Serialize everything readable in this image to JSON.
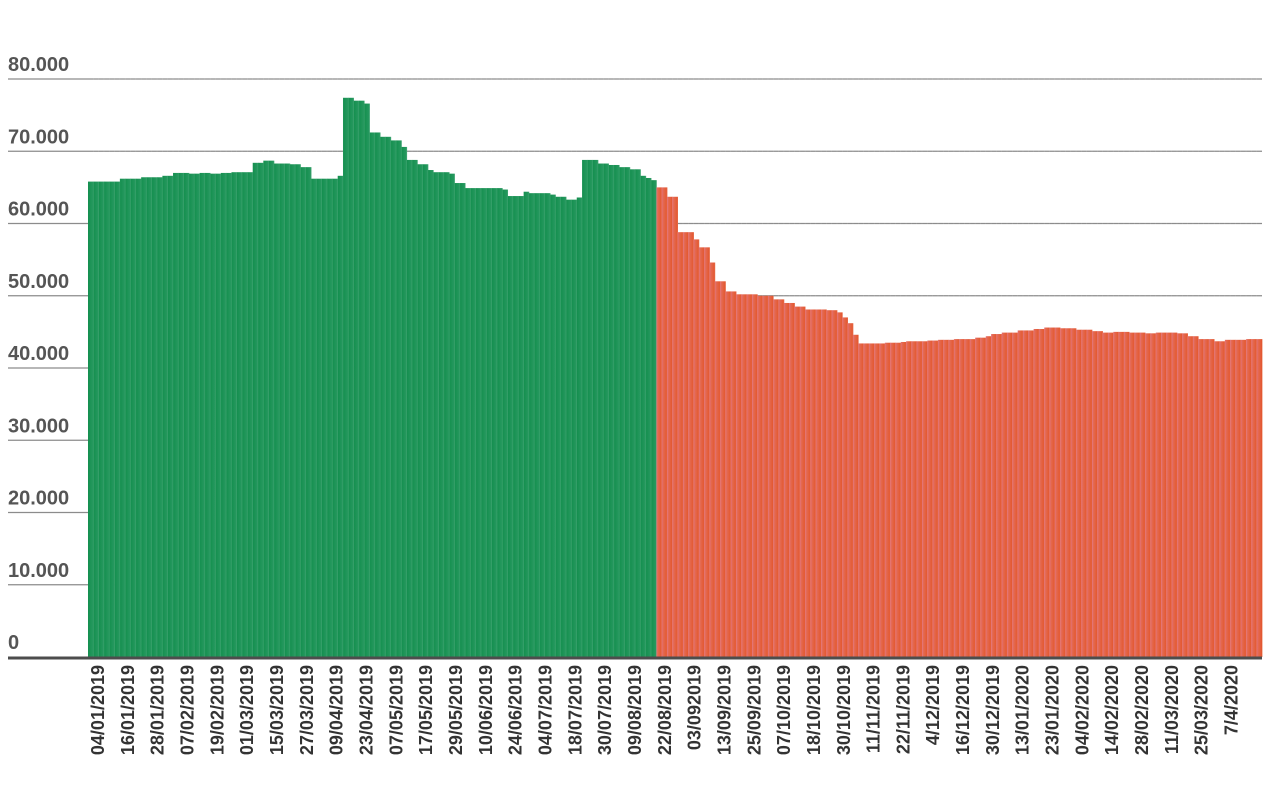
{
  "chart_data": {
    "type": "bar",
    "title": "",
    "xlabel": "",
    "ylabel": "",
    "ylim": [
      0,
      80000
    ],
    "y_ticks": [
      0,
      10000,
      20000,
      30000,
      40000,
      50000,
      60000,
      70000,
      80000
    ],
    "y_tick_labels": [
      "0",
      "10.000",
      "20.000",
      "30.000",
      "40.000",
      "50.000",
      "60.000",
      "70.000",
      "80.000"
    ],
    "x_tick_labels": [
      "04/01/2019",
      "16/01/2019",
      "28/01/2019",
      "07/02/2019",
      "19/02/2019",
      "01/03/2019",
      "15/03/2019",
      "27/03/2019",
      "09/04/2019",
      "23/04/2019",
      "07/05/2019",
      "17/05/2019",
      "29/05/2019",
      "10/06/2019",
      "24/06/2019",
      "04/07/2019",
      "18/07/2019",
      "30/07/2019",
      "09/08/2019",
      "22/08/2019",
      "03/092019",
      "13/09/2019",
      "25/09/2019",
      "07/10/2019",
      "18/10/2019",
      "30/10/2019",
      "11/11/2019",
      "22/11/2019",
      "4/12/2019",
      "16/12/2019",
      "30/12/2019",
      "13/01/2020",
      "23/01/2020",
      "04/02/2020",
      "14/02/2020",
      "28/02/2020",
      "11/03/2020",
      "25/03/2020",
      "7/4/2020"
    ],
    "grid": true,
    "legend": "none",
    "series": [
      {
        "color": "#1e9257",
        "profile": [
          [
            0,
            65800
          ],
          [
            6,
            66200
          ],
          [
            10,
            66400
          ],
          [
            14,
            66600
          ],
          [
            16,
            67000
          ],
          [
            19,
            66900
          ],
          [
            21,
            67000
          ],
          [
            23,
            66900
          ],
          [
            25,
            67000
          ],
          [
            27,
            67100
          ],
          [
            29,
            67100
          ],
          [
            31,
            68400
          ],
          [
            33,
            68700
          ],
          [
            35,
            68300
          ],
          [
            38,
            68200
          ],
          [
            40,
            67800
          ],
          [
            42,
            66200
          ],
          [
            47,
            66600
          ],
          [
            48,
            77400
          ],
          [
            50,
            77000
          ],
          [
            52,
            76600
          ],
          [
            53,
            72600
          ],
          [
            55,
            72000
          ],
          [
            57,
            71500
          ],
          [
            59,
            70600
          ],
          [
            60,
            68800
          ],
          [
            62,
            68200
          ],
          [
            64,
            67400
          ],
          [
            65,
            67100
          ],
          [
            68,
            66900
          ],
          [
            69,
            65600
          ],
          [
            71,
            64900
          ],
          [
            78,
            64700
          ],
          [
            79,
            63800
          ],
          [
            82,
            64400
          ],
          [
            83,
            64200
          ],
          [
            87,
            64000
          ],
          [
            88,
            63700
          ],
          [
            90,
            63300
          ],
          [
            92,
            63600
          ],
          [
            93,
            68800
          ],
          [
            96,
            68300
          ],
          [
            98,
            68100
          ],
          [
            100,
            67800
          ],
          [
            102,
            67500
          ],
          [
            104,
            66600
          ],
          [
            105,
            66300
          ],
          [
            106,
            66000
          ]
        ]
      },
      {
        "color": "#e35c2b",
        "profile": [
          [
            107,
            65000
          ],
          [
            109,
            63700
          ],
          [
            111,
            58800
          ],
          [
            114,
            57800
          ],
          [
            115,
            56700
          ],
          [
            117,
            54600
          ],
          [
            118,
            52000
          ],
          [
            120,
            50600
          ],
          [
            122,
            50200
          ],
          [
            126,
            50000
          ],
          [
            129,
            49500
          ],
          [
            131,
            49000
          ],
          [
            133,
            48500
          ],
          [
            135,
            48100
          ],
          [
            139,
            48000
          ],
          [
            141,
            47700
          ],
          [
            142,
            47000
          ],
          [
            143,
            46200
          ],
          [
            144,
            44600
          ],
          [
            145,
            43400
          ],
          [
            150,
            43500
          ],
          [
            153,
            43600
          ],
          [
            154,
            43700
          ],
          [
            158,
            43800
          ],
          [
            160,
            43900
          ],
          [
            163,
            44000
          ],
          [
            167,
            44200
          ],
          [
            169,
            44400
          ],
          [
            170,
            44700
          ],
          [
            172,
            44900
          ],
          [
            175,
            45200
          ],
          [
            178,
            45400
          ],
          [
            180,
            45600
          ],
          [
            183,
            45500
          ],
          [
            186,
            45300
          ],
          [
            189,
            45100
          ],
          [
            191,
            44900
          ],
          [
            193,
            45000
          ],
          [
            196,
            44900
          ],
          [
            199,
            44800
          ],
          [
            201,
            44900
          ],
          [
            205,
            44800
          ],
          [
            207,
            44400
          ],
          [
            209,
            44000
          ],
          [
            212,
            43700
          ],
          [
            214,
            43900
          ],
          [
            218,
            44000
          ],
          [
            220,
            44000
          ]
        ]
      }
    ]
  }
}
